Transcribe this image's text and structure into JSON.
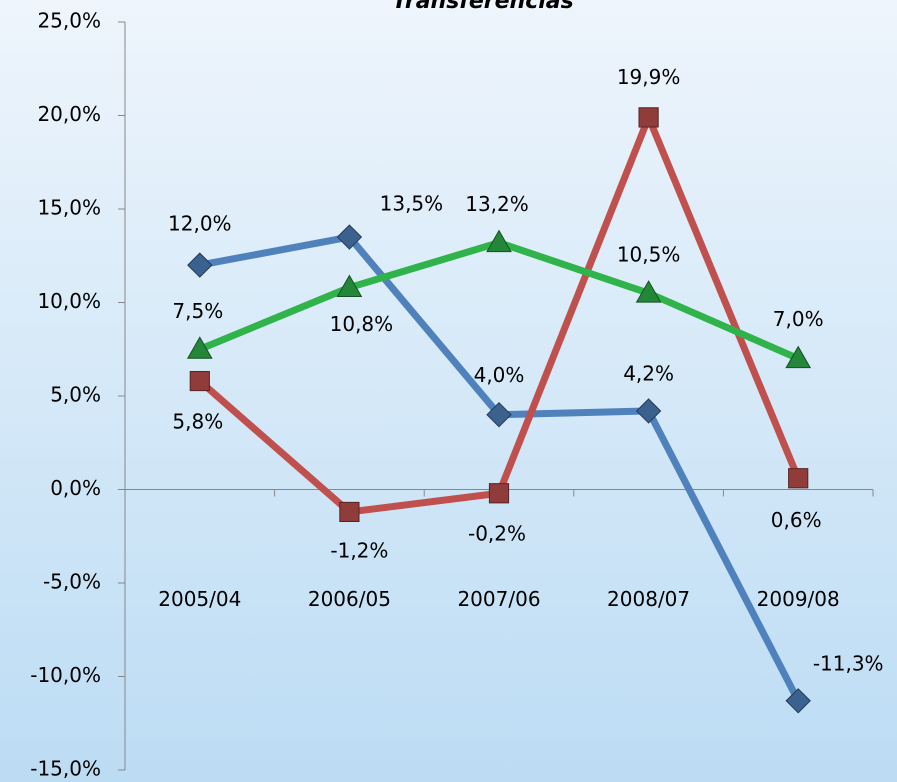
{
  "chart_data": {
    "type": "line",
    "title": "Transferencias",
    "categories": [
      "2005/04",
      "2006/05",
      "2007/06",
      "2008/07",
      "2009/08"
    ],
    "ylim": [
      -15,
      25
    ],
    "yticks": [
      {
        "value": -15,
        "label": "-15,0%"
      },
      {
        "value": -10,
        "label": "-10,0%"
      },
      {
        "value": -5,
        "label": "-5,0%"
      },
      {
        "value": 0,
        "label": "0,0%"
      },
      {
        "value": 5,
        "label": "5,0%"
      },
      {
        "value": 10,
        "label": "10,0%"
      },
      {
        "value": 15,
        "label": "15,0%"
      },
      {
        "value": 20,
        "label": "20,0%"
      },
      {
        "value": 25,
        "label": "25,0%"
      }
    ],
    "grid": false,
    "series": [
      {
        "color": "#4f81bd",
        "marker": "diamond",
        "values": [
          12.0,
          13.5,
          4.0,
          4.2,
          -11.3
        ],
        "value_labels": [
          "12,0%",
          "13,5%",
          "4,0%",
          "4,2%",
          "-11,3%"
        ]
      },
      {
        "color": "#c0504d",
        "marker": "square",
        "values": [
          5.8,
          -1.2,
          -0.2,
          19.9,
          0.6
        ],
        "value_labels": [
          "5,8%",
          "-1,2%",
          "-0,2%",
          "19,9%",
          "0,6%"
        ]
      },
      {
        "color": "#2fb34a",
        "marker": "triangle",
        "values": [
          7.5,
          10.8,
          13.2,
          10.5,
          7.0
        ],
        "value_labels": [
          "7,5%",
          "10,8%",
          "13,2%",
          "10,5%",
          "7,0%"
        ]
      }
    ]
  }
}
